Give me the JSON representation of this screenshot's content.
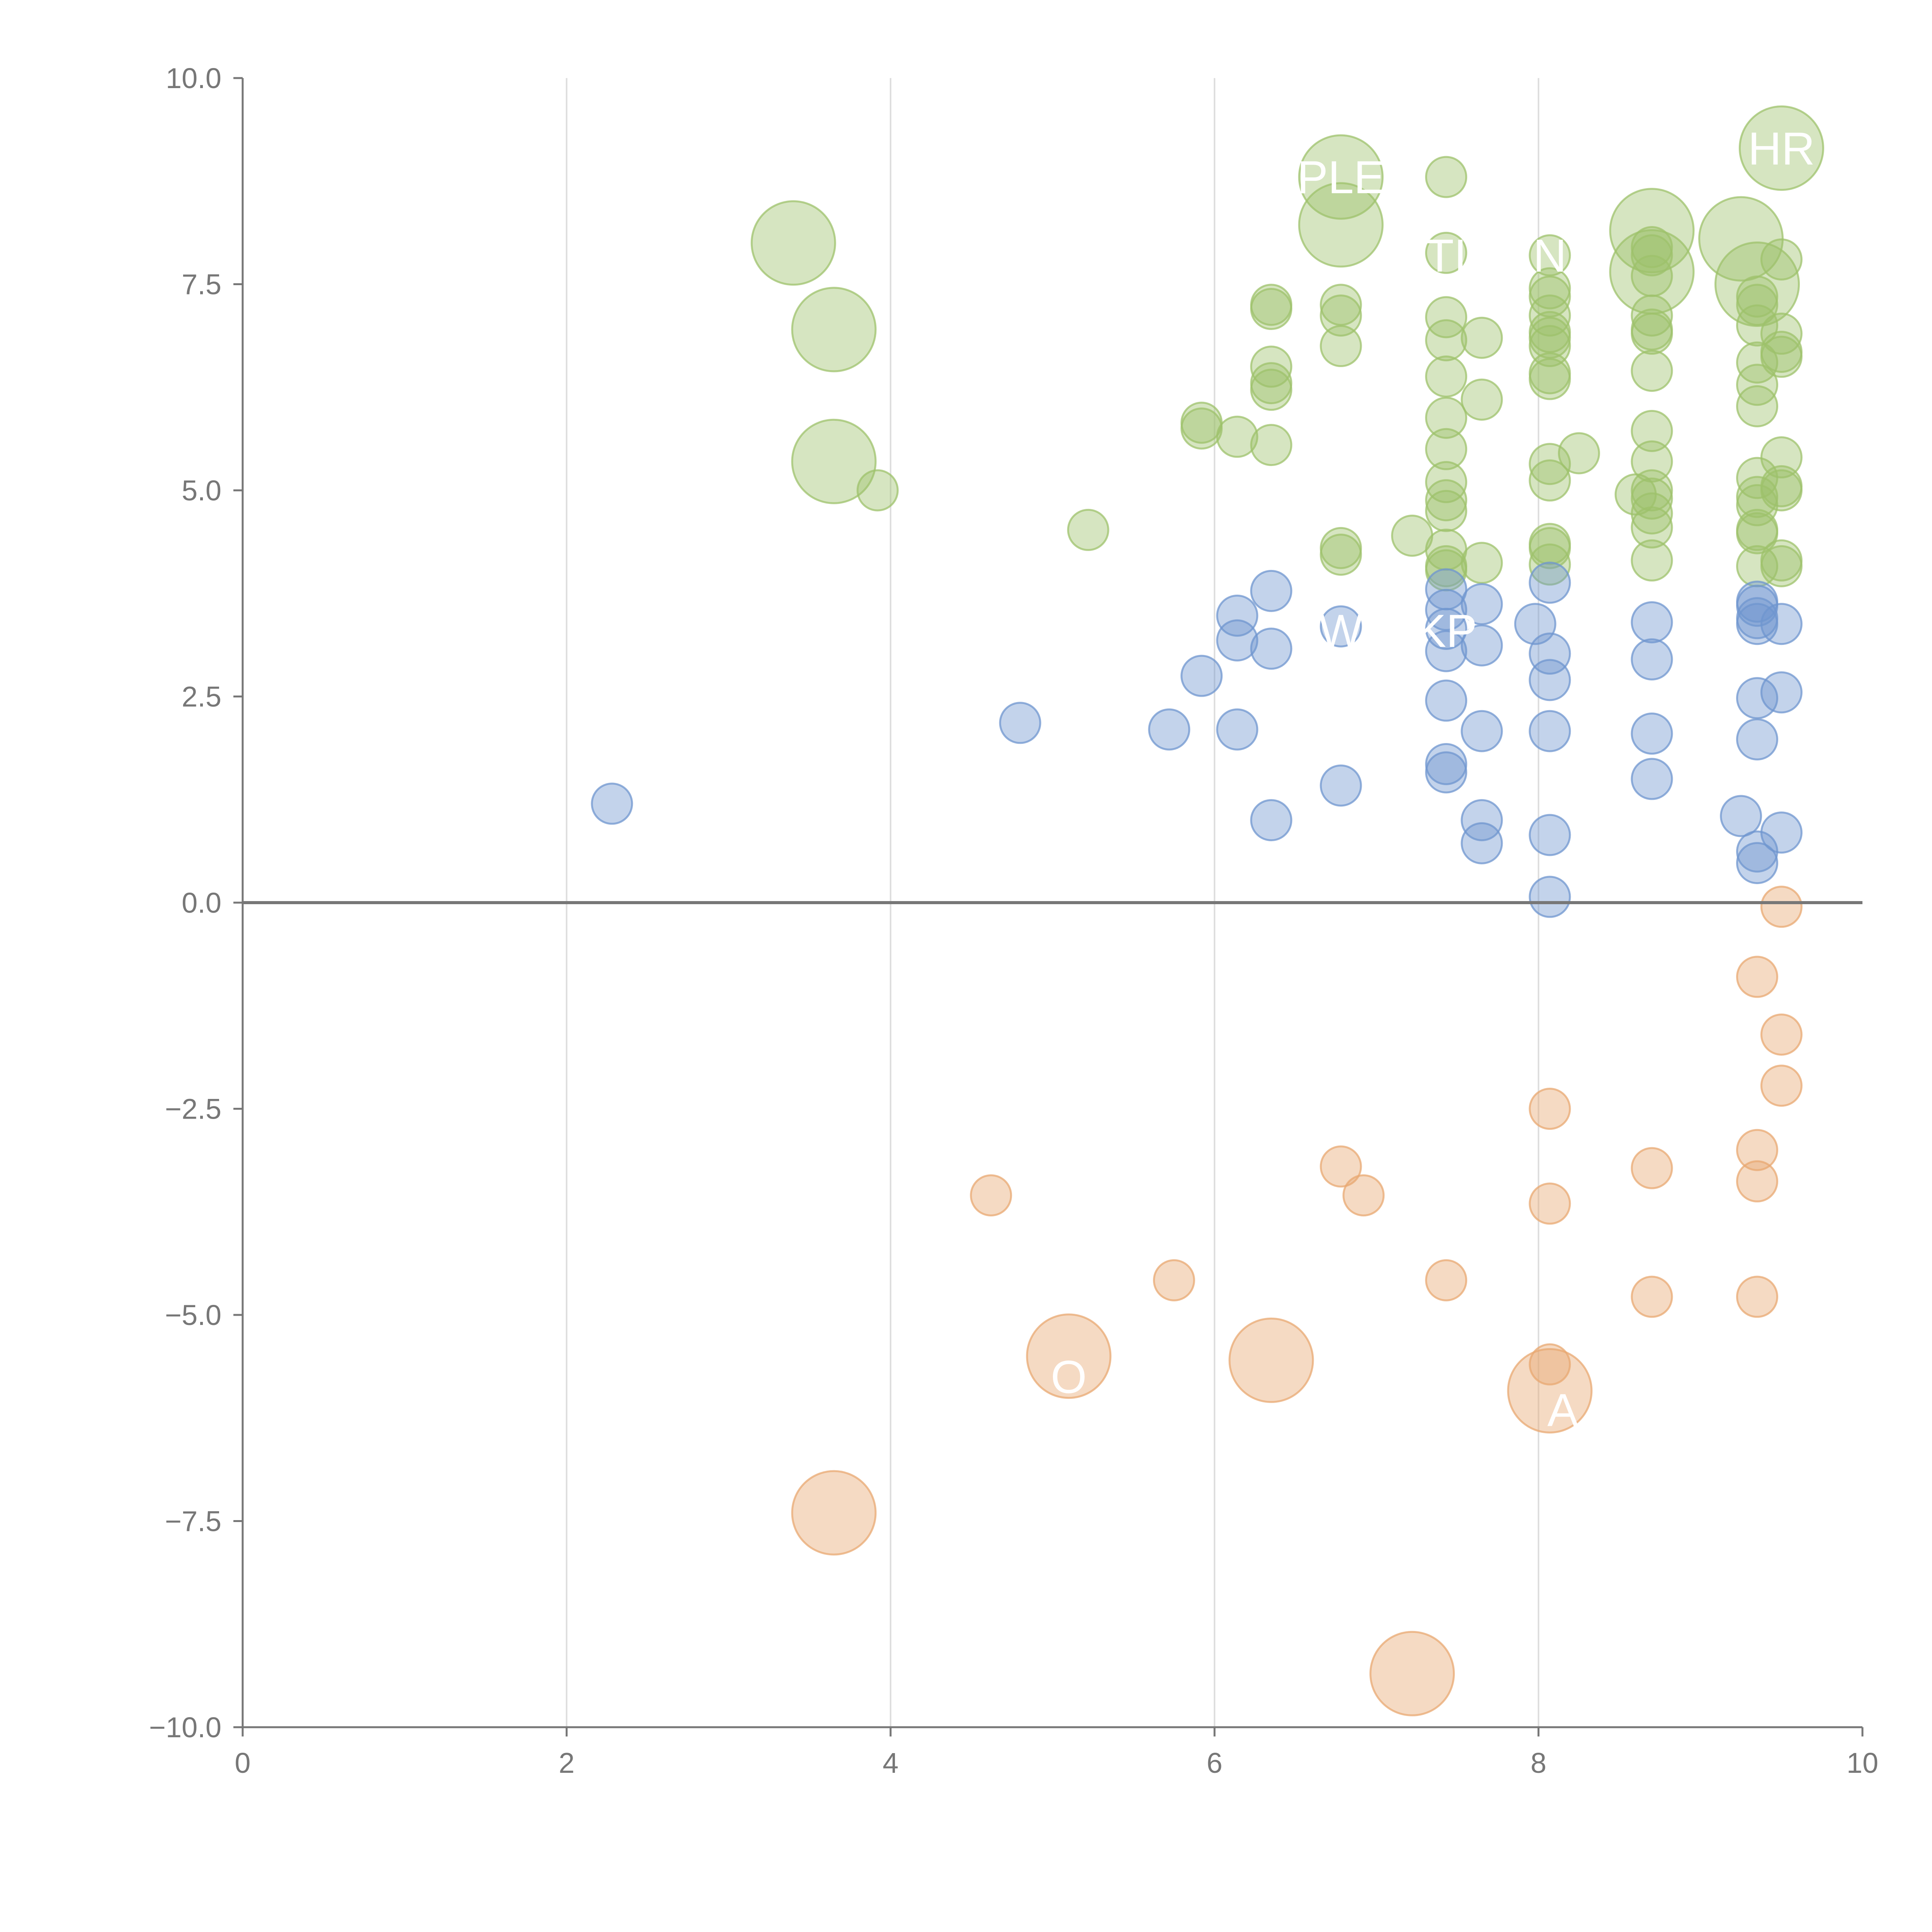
{
  "chart_data": {
    "type": "scatter",
    "title": "",
    "xlabel": "",
    "ylabel": "",
    "xlim": [
      0,
      10
    ],
    "ylim": [
      -10,
      10
    ],
    "xticks": [
      0,
      2,
      4,
      6,
      8,
      10
    ],
    "xtick_labels": [
      "0",
      "2",
      "4",
      "6",
      "8",
      "10"
    ],
    "yticks": [
      10,
      7.5,
      5,
      2.5,
      0,
      -2.5,
      -5,
      -7.5,
      -10
    ],
    "ytick_labels": [
      "10.0",
      "7.5",
      "5.0",
      "2.5",
      "0.0",
      "−2.5",
      "−5.0",
      "−7.5",
      "−10.0"
    ],
    "vertical_gridlines_at": [
      2,
      4,
      6,
      8
    ],
    "zero_line": 0,
    "legend": "none",
    "series": [
      {
        "name": "green",
        "color": "#9dc16b",
        "points": [
          {
            "x": 3.4,
            "y": 8.0,
            "size": 3
          },
          {
            "x": 3.65,
            "y": 6.95,
            "size": 3
          },
          {
            "x": 3.65,
            "y": 5.35,
            "size": 3
          },
          {
            "x": 6.78,
            "y": 8.8,
            "size": 3
          },
          {
            "x": 6.78,
            "y": 8.22,
            "size": 3
          },
          {
            "x": 8.7,
            "y": 8.15,
            "size": 3
          },
          {
            "x": 8.7,
            "y": 7.65,
            "size": 3
          },
          {
            "x": 9.25,
            "y": 8.05,
            "size": 3
          },
          {
            "x": 9.35,
            "y": 7.5,
            "size": 3
          },
          {
            "x": 9.5,
            "y": 9.15,
            "size": 3
          },
          {
            "x": 3.92,
            "y": 5.0,
            "size": 1
          },
          {
            "x": 5.22,
            "y": 4.52,
            "size": 1
          },
          {
            "x": 5.92,
            "y": 5.82,
            "size": 1
          },
          {
            "x": 5.92,
            "y": 5.75,
            "size": 1
          },
          {
            "x": 6.14,
            "y": 5.65,
            "size": 1
          },
          {
            "x": 6.35,
            "y": 7.25,
            "size": 1
          },
          {
            "x": 6.35,
            "y": 7.2,
            "size": 1
          },
          {
            "x": 6.35,
            "y": 6.5,
            "size": 1
          },
          {
            "x": 6.35,
            "y": 6.3,
            "size": 1
          },
          {
            "x": 6.35,
            "y": 6.22,
            "size": 1
          },
          {
            "x": 6.35,
            "y": 5.55,
            "size": 1
          },
          {
            "x": 6.78,
            "y": 7.25,
            "size": 1
          },
          {
            "x": 6.78,
            "y": 7.12,
            "size": 1
          },
          {
            "x": 6.78,
            "y": 6.75,
            "size": 1
          },
          {
            "x": 6.78,
            "y": 4.3,
            "size": 1
          },
          {
            "x": 6.78,
            "y": 4.22,
            "size": 1
          },
          {
            "x": 7.22,
            "y": 4.45,
            "size": 1
          },
          {
            "x": 7.43,
            "y": 8.8,
            "size": 1
          },
          {
            "x": 7.43,
            "y": 7.88,
            "size": 1
          },
          {
            "x": 7.43,
            "y": 7.1,
            "size": 1
          },
          {
            "x": 7.43,
            "y": 6.82,
            "size": 1
          },
          {
            "x": 7.43,
            "y": 6.38,
            "size": 1
          },
          {
            "x": 7.43,
            "y": 5.88,
            "size": 1
          },
          {
            "x": 7.43,
            "y": 5.5,
            "size": 1
          },
          {
            "x": 7.43,
            "y": 5.1,
            "size": 1
          },
          {
            "x": 7.43,
            "y": 4.88,
            "size": 1
          },
          {
            "x": 7.43,
            "y": 4.75,
            "size": 1
          },
          {
            "x": 7.43,
            "y": 4.28,
            "size": 1
          },
          {
            "x": 7.43,
            "y": 4.08,
            "size": 1
          },
          {
            "x": 7.43,
            "y": 4.03,
            "size": 1
          },
          {
            "x": 7.65,
            "y": 6.85,
            "size": 1
          },
          {
            "x": 7.65,
            "y": 6.1,
            "size": 1
          },
          {
            "x": 7.65,
            "y": 4.12,
            "size": 1
          },
          {
            "x": 8.07,
            "y": 7.85,
            "size": 1
          },
          {
            "x": 8.07,
            "y": 7.45,
            "size": 1
          },
          {
            "x": 8.07,
            "y": 7.35,
            "size": 1
          },
          {
            "x": 8.07,
            "y": 7.12,
            "size": 1
          },
          {
            "x": 8.07,
            "y": 6.92,
            "size": 1
          },
          {
            "x": 8.07,
            "y": 6.85,
            "size": 1
          },
          {
            "x": 8.07,
            "y": 6.75,
            "size": 1
          },
          {
            "x": 8.07,
            "y": 6.42,
            "size": 1
          },
          {
            "x": 8.07,
            "y": 6.35,
            "size": 1
          },
          {
            "x": 8.07,
            "y": 5.32,
            "size": 1
          },
          {
            "x": 8.07,
            "y": 5.12,
            "size": 1
          },
          {
            "x": 8.07,
            "y": 4.35,
            "size": 1
          },
          {
            "x": 8.07,
            "y": 4.3,
            "size": 1
          },
          {
            "x": 8.07,
            "y": 4.1,
            "size": 1
          },
          {
            "x": 8.25,
            "y": 5.45,
            "size": 1
          },
          {
            "x": 8.6,
            "y": 4.95,
            "size": 1
          },
          {
            "x": 8.7,
            "y": 7.95,
            "size": 1
          },
          {
            "x": 8.7,
            "y": 7.85,
            "size": 1
          },
          {
            "x": 8.7,
            "y": 7.6,
            "size": 1
          },
          {
            "x": 8.7,
            "y": 7.12,
            "size": 1
          },
          {
            "x": 8.7,
            "y": 6.95,
            "size": 1
          },
          {
            "x": 8.7,
            "y": 6.9,
            "size": 1
          },
          {
            "x": 8.7,
            "y": 6.45,
            "size": 1
          },
          {
            "x": 8.7,
            "y": 5.72,
            "size": 1
          },
          {
            "x": 8.7,
            "y": 5.35,
            "size": 1
          },
          {
            "x": 8.7,
            "y": 5.0,
            "size": 1
          },
          {
            "x": 8.7,
            "y": 4.9,
            "size": 1
          },
          {
            "x": 8.7,
            "y": 4.72,
            "size": 1
          },
          {
            "x": 8.7,
            "y": 4.55,
            "size": 1
          },
          {
            "x": 8.7,
            "y": 4.15,
            "size": 1
          },
          {
            "x": 9.35,
            "y": 7.35,
            "size": 1
          },
          {
            "x": 9.35,
            "y": 7.25,
            "size": 1
          },
          {
            "x": 9.35,
            "y": 7.0,
            "size": 1
          },
          {
            "x": 9.35,
            "y": 6.55,
            "size": 1
          },
          {
            "x": 9.35,
            "y": 6.28,
            "size": 1
          },
          {
            "x": 9.35,
            "y": 6.02,
            "size": 1
          },
          {
            "x": 9.35,
            "y": 5.15,
            "size": 1
          },
          {
            "x": 9.35,
            "y": 4.92,
            "size": 1
          },
          {
            "x": 9.35,
            "y": 4.82,
            "size": 1
          },
          {
            "x": 9.35,
            "y": 4.52,
            "size": 1
          },
          {
            "x": 9.35,
            "y": 4.48,
            "size": 1
          },
          {
            "x": 9.35,
            "y": 4.08,
            "size": 1
          },
          {
            "x": 9.5,
            "y": 7.8,
            "size": 1
          },
          {
            "x": 9.5,
            "y": 6.9,
            "size": 1
          },
          {
            "x": 9.5,
            "y": 6.68,
            "size": 1
          },
          {
            "x": 9.5,
            "y": 6.62,
            "size": 1
          },
          {
            "x": 9.5,
            "y": 5.4,
            "size": 1
          },
          {
            "x": 9.5,
            "y": 5.05,
            "size": 1
          },
          {
            "x": 9.5,
            "y": 5.0,
            "size": 1
          },
          {
            "x": 9.5,
            "y": 4.15,
            "size": 1
          },
          {
            "x": 9.5,
            "y": 4.08,
            "size": 1
          }
        ]
      },
      {
        "name": "blue",
        "color": "#6f96cf",
        "points": [
          {
            "x": 2.28,
            "y": 1.2,
            "size": 1
          },
          {
            "x": 4.8,
            "y": 2.18,
            "size": 1
          },
          {
            "x": 5.72,
            "y": 2.1,
            "size": 1
          },
          {
            "x": 5.92,
            "y": 2.75,
            "size": 1
          },
          {
            "x": 6.14,
            "y": 3.48,
            "size": 1
          },
          {
            "x": 6.14,
            "y": 3.18,
            "size": 1
          },
          {
            "x": 6.14,
            "y": 2.1,
            "size": 1
          },
          {
            "x": 6.35,
            "y": 3.78,
            "size": 1
          },
          {
            "x": 6.35,
            "y": 3.08,
            "size": 1
          },
          {
            "x": 6.35,
            "y": 1.0,
            "size": 1
          },
          {
            "x": 6.78,
            "y": 3.35,
            "size": 1
          },
          {
            "x": 6.78,
            "y": 1.42,
            "size": 1
          },
          {
            "x": 7.43,
            "y": 3.8,
            "size": 1
          },
          {
            "x": 7.43,
            "y": 3.55,
            "size": 1
          },
          {
            "x": 7.43,
            "y": 3.32,
            "size": 1
          },
          {
            "x": 7.43,
            "y": 3.05,
            "size": 1
          },
          {
            "x": 7.43,
            "y": 2.45,
            "size": 1
          },
          {
            "x": 7.43,
            "y": 1.68,
            "size": 1
          },
          {
            "x": 7.43,
            "y": 1.58,
            "size": 1
          },
          {
            "x": 7.65,
            "y": 3.62,
            "size": 1
          },
          {
            "x": 7.65,
            "y": 3.12,
            "size": 1
          },
          {
            "x": 7.65,
            "y": 2.08,
            "size": 1
          },
          {
            "x": 7.65,
            "y": 1.0,
            "size": 1
          },
          {
            "x": 7.65,
            "y": 0.72,
            "size": 1
          },
          {
            "x": 7.98,
            "y": 3.38,
            "size": 1
          },
          {
            "x": 8.07,
            "y": 3.88,
            "size": 1
          },
          {
            "x": 8.07,
            "y": 3.02,
            "size": 1
          },
          {
            "x": 8.07,
            "y": 2.7,
            "size": 1
          },
          {
            "x": 8.07,
            "y": 2.08,
            "size": 1
          },
          {
            "x": 8.07,
            "y": 0.82,
            "size": 1
          },
          {
            "x": 8.07,
            "y": 0.07,
            "size": 1
          },
          {
            "x": 8.7,
            "y": 3.4,
            "size": 1
          },
          {
            "x": 8.7,
            "y": 2.95,
            "size": 1
          },
          {
            "x": 8.7,
            "y": 2.05,
            "size": 1
          },
          {
            "x": 8.7,
            "y": 1.5,
            "size": 1
          },
          {
            "x": 9.25,
            "y": 1.05,
            "size": 1
          },
          {
            "x": 9.35,
            "y": 3.65,
            "size": 1
          },
          {
            "x": 9.35,
            "y": 3.6,
            "size": 1
          },
          {
            "x": 9.35,
            "y": 3.45,
            "size": 1
          },
          {
            "x": 9.35,
            "y": 3.38,
            "size": 1
          },
          {
            "x": 9.35,
            "y": 2.48,
            "size": 1
          },
          {
            "x": 9.35,
            "y": 1.98,
            "size": 1
          },
          {
            "x": 9.35,
            "y": 0.62,
            "size": 1
          },
          {
            "x": 9.35,
            "y": 0.48,
            "size": 1
          },
          {
            "x": 9.5,
            "y": 3.38,
            "size": 1
          },
          {
            "x": 9.5,
            "y": 2.55,
            "size": 1
          },
          {
            "x": 9.5,
            "y": 0.85,
            "size": 1
          }
        ]
      },
      {
        "name": "orange",
        "color": "#e8a871",
        "points": [
          {
            "x": 5.1,
            "y": -5.5,
            "size": 3
          },
          {
            "x": 6.35,
            "y": -5.55,
            "size": 3
          },
          {
            "x": 8.07,
            "y": -5.92,
            "size": 3
          },
          {
            "x": 3.65,
            "y": -7.4,
            "size": 3
          },
          {
            "x": 7.22,
            "y": -9.35,
            "size": 3
          },
          {
            "x": 9.5,
            "y": -0.05,
            "size": 1
          },
          {
            "x": 9.35,
            "y": -0.9,
            "size": 1
          },
          {
            "x": 9.5,
            "y": -1.6,
            "size": 1
          },
          {
            "x": 9.5,
            "y": -2.22,
            "size": 1
          },
          {
            "x": 8.07,
            "y": -2.5,
            "size": 1
          },
          {
            "x": 9.35,
            "y": -3.0,
            "size": 1
          },
          {
            "x": 6.78,
            "y": -3.2,
            "size": 1
          },
          {
            "x": 8.7,
            "y": -3.22,
            "size": 1
          },
          {
            "x": 9.35,
            "y": -3.38,
            "size": 1
          },
          {
            "x": 4.62,
            "y": -3.55,
            "size": 1
          },
          {
            "x": 6.92,
            "y": -3.55,
            "size": 1
          },
          {
            "x": 8.07,
            "y": -3.65,
            "size": 1
          },
          {
            "x": 5.75,
            "y": -4.58,
            "size": 1
          },
          {
            "x": 7.43,
            "y": -4.58,
            "size": 1
          },
          {
            "x": 8.7,
            "y": -4.78,
            "size": 1
          },
          {
            "x": 9.35,
            "y": -4.78,
            "size": 1
          },
          {
            "x": 8.07,
            "y": -5.6,
            "size": 1
          }
        ]
      }
    ],
    "annotations": [
      {
        "text": "PLE",
        "x": 6.78,
        "y": 8.8,
        "color": "#ffffff"
      },
      {
        "text": "HR",
        "x": 9.5,
        "y": 9.15,
        "color": "#ffffff"
      },
      {
        "text": "TI",
        "x": 7.43,
        "y": 7.85,
        "color": "#ffffff"
      },
      {
        "text": "N",
        "x": 8.07,
        "y": 7.85,
        "color": "#ffffff"
      },
      {
        "text": "W",
        "x": 6.78,
        "y": 3.3,
        "color": "#ffffff"
      },
      {
        "text": "KP",
        "x": 7.43,
        "y": 3.3,
        "color": "#ffffff"
      },
      {
        "text": "O",
        "x": 5.1,
        "y": -5.75,
        "color": "#ffffff"
      },
      {
        "text": "A",
        "x": 8.15,
        "y": -6.15,
        "color": "#ffffff"
      }
    ]
  }
}
